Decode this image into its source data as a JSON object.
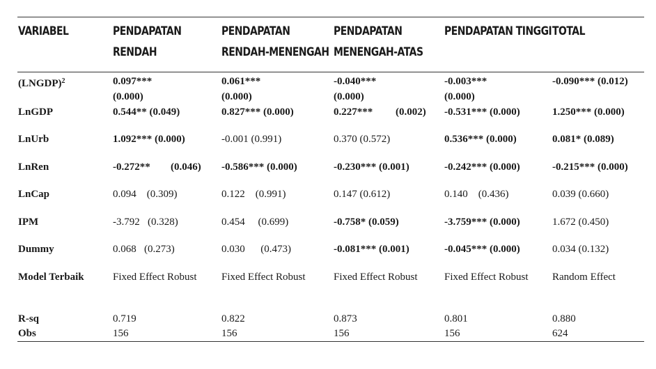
{
  "headers": {
    "variabel": "VARIABEL",
    "col1_line1": "PENDAPATAN",
    "col1_line2": "RENDAH",
    "col2_line1": "PENDAPATAN",
    "col2_line2": "RENDAH-MENENGAH",
    "col3_line1": "PENDAPATAN",
    "col3_line2": "MENENGAH-ATAS",
    "col4": "PENDAPATAN TINGGI",
    "col5": "TOTAL"
  },
  "rows": {
    "lngdp2": {
      "label": "(LNGDP)",
      "label_sup": "2",
      "c1_a": "0.097***",
      "c1_b": "(0.000)",
      "c2_a": "0.061***",
      "c2_b": "(0.000)",
      "c3_a": "-0.040***",
      "c3_b": "(0.000)",
      "c4_a": "-0.003***",
      "c4_b": "(0.000)",
      "c5": "-0.090*** (0.012)"
    },
    "lngdp": {
      "label": "LnGDP",
      "c1": "0.544** (0.049)",
      "c2": "0.827*** (0.000)",
      "c3_a": "0.227***",
      "c3_b": "(0.002)",
      "c4": "-0.531*** (0.000)",
      "c5": "1.250*** (0.000)"
    },
    "lnurb": {
      "label": "LnUrb",
      "c1": "1.092*** (0.000)",
      "c2": "-0.001 (0.991)",
      "c3": "0.370 (0.572)",
      "c4": "0.536*** (0.000)",
      "c5": "0.081* (0.089)"
    },
    "lnren": {
      "label": "LnRen",
      "c1_a": "-0.272**",
      "c1_b": "(0.046)",
      "c2": "-0.586*** (0.000)",
      "c3": "-0.230*** (0.001)",
      "c4": "-0.242*** (0.000)",
      "c5": "-0.215*** (0.000)"
    },
    "lncap": {
      "label": "LnCap",
      "c1": "0.094    (0.309)",
      "c2": "0.122    (0.991)",
      "c3": "0.147 (0.612)",
      "c4": "0.140    (0.436)",
      "c5": "0.039 (0.660)"
    },
    "ipm": {
      "label": "IPM",
      "c1": "-3.792   (0.328)",
      "c2": "0.454     (0.699)",
      "c3": "-0.758* (0.059)",
      "c4": "-3.759*** (0.000)",
      "c5": "1.672 (0.450)"
    },
    "dummy": {
      "label": "Dummy",
      "c1": "0.068   (0.273)",
      "c2": "0.030      (0.473)",
      "c3": "-0.081*** (0.001)",
      "c4": "-0.045*** (0.000)",
      "c5": "0.034 (0.132)"
    },
    "model": {
      "label": "Model Terbaik",
      "c1": "Fixed Effect Robust",
      "c2": "Fixed Effect Robust",
      "c3": "Fixed Effect Robust",
      "c4": "Fixed Effect Robust",
      "c5": "Random Effect"
    },
    "rsq": {
      "label": "R-sq",
      "c1": "0.719",
      "c2": "0.822",
      "c3": "0.873",
      "c4": "0.801",
      "c5": "0.880"
    },
    "obs": {
      "label": "Obs",
      "c1": "156",
      "c2": "156",
      "c3": "156",
      "c4": "156",
      "c5": "624"
    }
  }
}
